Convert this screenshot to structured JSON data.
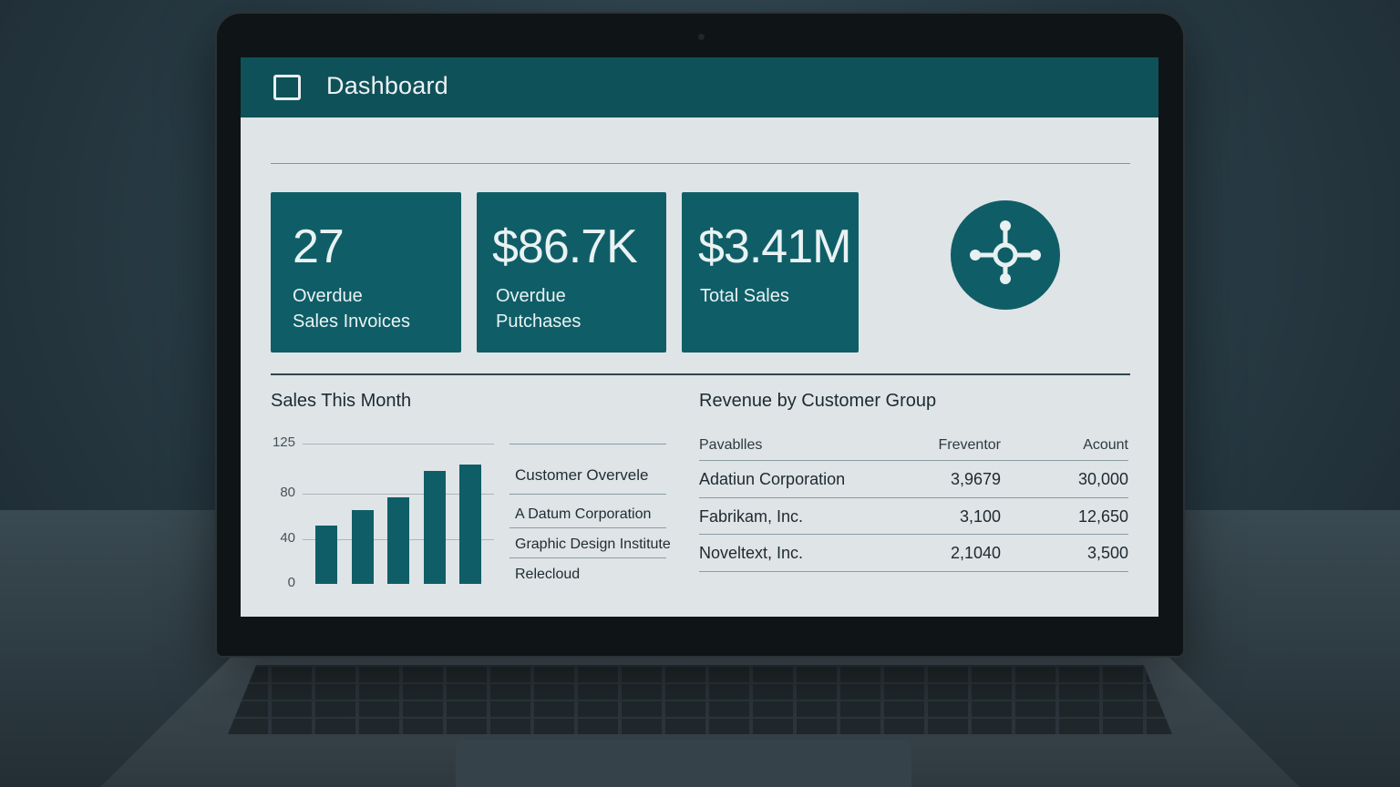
{
  "window": {
    "title": "Dashboard",
    "app_icon": "square-icon"
  },
  "tiles": [
    {
      "value": "27",
      "label_line1": "Overdue",
      "label_line2": "Sales Invoices"
    },
    {
      "value": "$86.7K",
      "label_line1": "Overdue",
      "label_line2": "Putchases"
    },
    {
      "value": "$3.41M",
      "label_line1": "Total Sales",
      "label_line2": ""
    }
  ],
  "hub": {
    "icon": "hub-network-icon"
  },
  "sales_chart": {
    "title": "Sales This Month"
  },
  "chart_data": {
    "type": "bar",
    "title": "Sales This Month",
    "categories": [
      "",
      "",
      "",
      "",
      ""
    ],
    "values": [
      52,
      66,
      77,
      101,
      106
    ],
    "yticks": [
      0,
      40,
      80,
      125
    ],
    "ylim": [
      0,
      125
    ],
    "grid": true,
    "bar_color": "#0f5e67"
  },
  "customer_list": {
    "title": "Customer Overvele",
    "items": [
      "A Datum Corporation",
      "Graphic Design Institute",
      "Relecloud"
    ]
  },
  "revenue": {
    "title": "Revenue by Customer Group",
    "headers": [
      "Pavablles",
      "Freventor",
      "Acount"
    ],
    "rows": [
      [
        "Adatiun Corporation",
        "3,9679",
        "30,000"
      ],
      [
        "Fabrikam, Inc.",
        "3,100",
        "12,650"
      ],
      [
        "Noveltext, Inc.",
        "2,1040",
        "3,500"
      ]
    ]
  },
  "colors": {
    "accent": "#0f5e67",
    "header": "#0f5159",
    "background": "#dfe4e7"
  }
}
